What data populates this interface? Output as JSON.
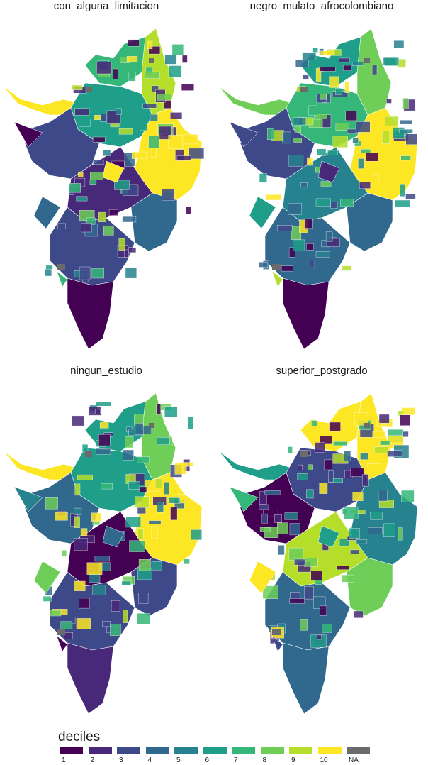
{
  "panels": [
    {
      "title": "con_alguna_limitacion",
      "dominant": [
        "#fde725",
        "#35b779",
        "#31688e",
        "#440154"
      ],
      "region_deciles": {
        "northeast": 9,
        "north": 7,
        "west_arm": 10,
        "center": 6,
        "east": 10,
        "west_center": 3,
        "south_center": 2,
        "southeast": 4,
        "south": 3,
        "south_tip": 1
      }
    },
    {
      "title": "negro_mulato_afrocolombiano",
      "dominant": [
        "#fde725",
        "#6ece58",
        "#26828e",
        "#440154"
      ],
      "region_deciles": {
        "northeast": 8,
        "north": 6,
        "west_arm": 8,
        "center": 7,
        "east": 10,
        "west_center": 3,
        "south_center": 5,
        "southeast": 4,
        "south": 4,
        "south_tip": 1
      }
    },
    {
      "title": "ningun_estudio",
      "dominant": [
        "#fde725",
        "#35b779",
        "#3e4989",
        "#482878"
      ],
      "region_deciles": {
        "northeast": 8,
        "north": 6,
        "west_arm": 10,
        "center": 6,
        "east": 10,
        "west_center": 4,
        "south_center": 1,
        "southeast": 3,
        "south": 3,
        "south_tip": 2
      }
    },
    {
      "title": "superior_postgrado",
      "dominant": [
        "#fde725",
        "#6ece58",
        "#440154",
        "#31688e"
      ],
      "region_deciles": {
        "northeast": 10,
        "north": 10,
        "west_arm": 6,
        "center": 3,
        "east": 5,
        "west_center": 1,
        "south_center": 9,
        "southeast": 8,
        "south": 4,
        "south_tip": 4
      }
    }
  ],
  "legend": {
    "title": "deciles",
    "items": [
      {
        "label": "1",
        "color": "#440154"
      },
      {
        "label": "2",
        "color": "#482878"
      },
      {
        "label": "3",
        "color": "#3e4989"
      },
      {
        "label": "4",
        "color": "#31688e"
      },
      {
        "label": "5",
        "color": "#26828e"
      },
      {
        "label": "6",
        "color": "#1f9e89"
      },
      {
        "label": "7",
        "color": "#35b779"
      },
      {
        "label": "8",
        "color": "#6ece58"
      },
      {
        "label": "9",
        "color": "#b5de2b"
      },
      {
        "label": "10",
        "color": "#fde725"
      },
      {
        "label": "NA",
        "color": "#6b6b6b"
      }
    ]
  }
}
